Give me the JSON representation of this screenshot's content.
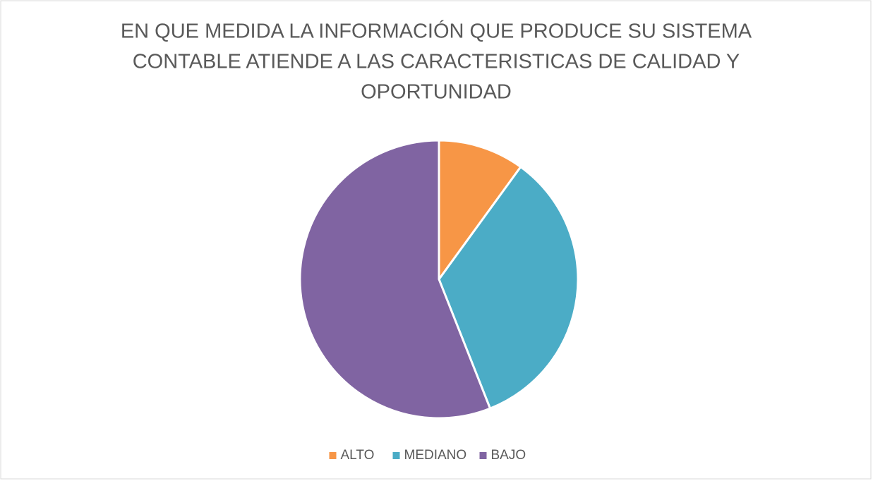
{
  "chart_data": {
    "type": "pie",
    "title": [
      "EN QUE MEDIDA LA INFORMACIÓN QUE PRODUCE SU SISTEMA",
      "CONTABLE ATIENDE A LAS CARACTERISTICAS DE  CALIDAD Y",
      "OPORTUNIDAD"
    ],
    "categories": [
      "ALTO",
      "MEDIANO",
      "BAJO"
    ],
    "values": [
      10,
      34,
      56
    ],
    "colors": [
      "#f79646",
      "#4bacc6",
      "#8064a2"
    ],
    "legend": "bottom"
  }
}
